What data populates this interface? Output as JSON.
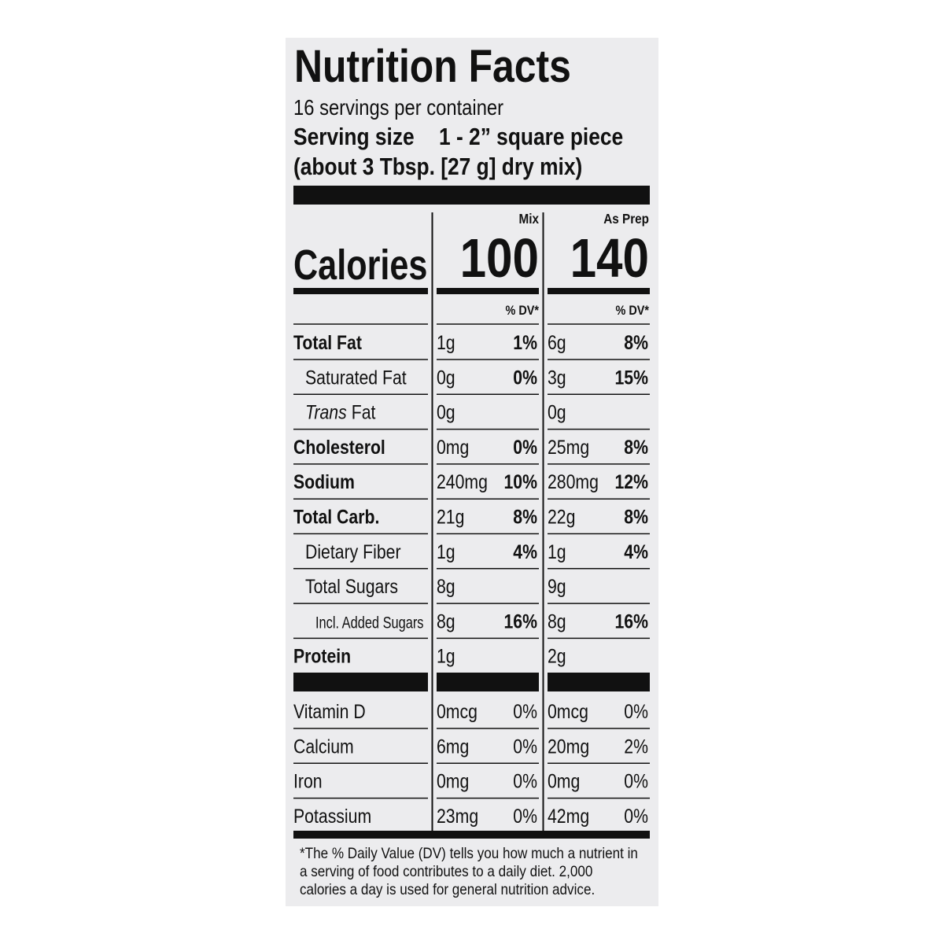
{
  "title": "Nutrition Facts",
  "servings": "16 servings per container",
  "serving_size": {
    "label": "Serving size",
    "value": "1 - 2” square piece",
    "note": "(about 3 Tbsp. [27 g] dry mix)"
  },
  "calories_label": "Calories",
  "columns": [
    {
      "name": "Mix",
      "calories": 100,
      "dv_header": "% DV*"
    },
    {
      "name": "As Prep",
      "calories": 140,
      "dv_header": "% DV*"
    }
  ],
  "nutrients": [
    {
      "name": "Total Fat",
      "style": "bold",
      "values": [
        [
          "1g",
          "1%"
        ],
        [
          "6g",
          "8%"
        ]
      ]
    },
    {
      "name": "Saturated Fat",
      "style": "indent",
      "values": [
        [
          "0g",
          "0%"
        ],
        [
          "3g",
          "15%"
        ]
      ]
    },
    {
      "name_italic": "Trans",
      "name": "Fat",
      "style": "indent",
      "values": [
        [
          "0g",
          null
        ],
        [
          "0g",
          null
        ]
      ]
    },
    {
      "name": "Cholesterol",
      "style": "bold",
      "values": [
        [
          "0mg",
          "0%"
        ],
        [
          "25mg",
          "8%"
        ]
      ]
    },
    {
      "name": "Sodium",
      "style": "bold",
      "values": [
        [
          "240mg",
          "10%"
        ],
        [
          "280mg",
          "12%"
        ]
      ]
    },
    {
      "name": "Total Carb.",
      "style": "bold",
      "values": [
        [
          "21g",
          "8%"
        ],
        [
          "22g",
          "8%"
        ]
      ]
    },
    {
      "name": "Dietary Fiber",
      "style": "indent",
      "values": [
        [
          "1g",
          "4%"
        ],
        [
          "1g",
          "4%"
        ]
      ]
    },
    {
      "name": "Total Sugars",
      "style": "indent",
      "values": [
        [
          "8g",
          null
        ],
        [
          "9g",
          null
        ]
      ]
    },
    {
      "name": "Incl. Added Sugars",
      "style": "indent2",
      "values": [
        [
          "8g",
          "16%"
        ],
        [
          "8g",
          "16%"
        ]
      ]
    },
    {
      "name": "Protein",
      "style": "bold",
      "values": [
        [
          "1g",
          null
        ],
        [
          "2g",
          null
        ]
      ]
    }
  ],
  "vitamins": [
    {
      "name": "Vitamin D",
      "values": [
        [
          "0mcg",
          "0%"
        ],
        [
          "0mcg",
          "0%"
        ]
      ]
    },
    {
      "name": "Calcium",
      "values": [
        [
          "6mg",
          "0%"
        ],
        [
          "20mg",
          "2%"
        ]
      ]
    },
    {
      "name": "Iron",
      "values": [
        [
          "0mg",
          "0%"
        ],
        [
          "0mg",
          "0%"
        ]
      ]
    },
    {
      "name": "Potassium",
      "values": [
        [
          "23mg",
          "0%"
        ],
        [
          "42mg",
          "0%"
        ]
      ]
    }
  ],
  "footnote": [
    "*The % Daily Value (DV) tells you how much a nutrient in",
    "a serving of food contributes to a daily diet. 2,000",
    "calories a day is used for general nutrition advice."
  ]
}
